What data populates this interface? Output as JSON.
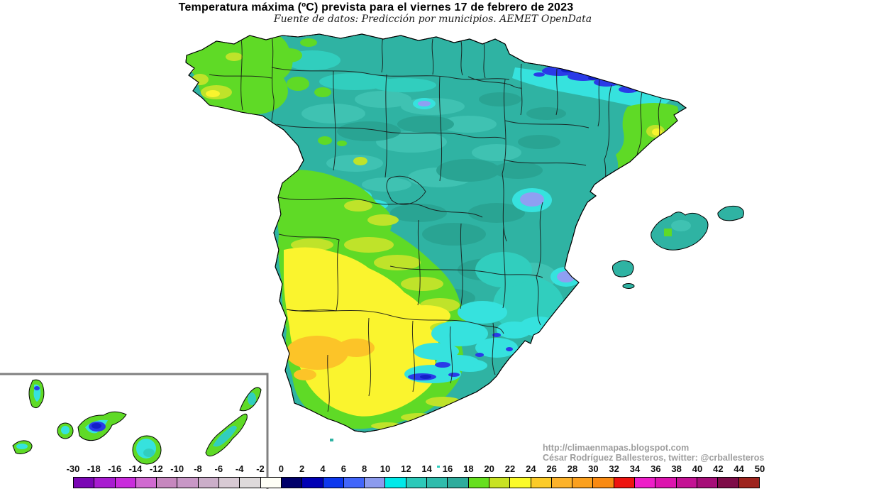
{
  "header": {
    "title": "Temperatura máxima (ºC) prevista para el viernes 17 de febrero de 2023",
    "subtitle": "Fuente de datos: Predicción por municipios. AEMET OpenData"
  },
  "attribution": {
    "url": "http://climaenmapas.blogspot.com",
    "author_line": "César Rodríguez Ballesteros, twitter: @crballesteros"
  },
  "legend": {
    "tick_labels": [
      "-30",
      "-18",
      "-16",
      "-14",
      "-12",
      "-10",
      "-8",
      "-6",
      "-4",
      "-2",
      "0",
      "2",
      "4",
      "6",
      "8",
      "10",
      "12",
      "14",
      "16",
      "18",
      "20",
      "22",
      "24",
      "26",
      "28",
      "30",
      "32",
      "34",
      "36",
      "38",
      "40",
      "42",
      "44",
      "50"
    ],
    "cell_colors": [
      "#7A06B4",
      "#A81CD0",
      "#C92CDC",
      "#D06AD0",
      "#C687BE",
      "#C897C6",
      "#CBAEC9",
      "#D8CAD4",
      "#DEDADB",
      "#FEFEF6",
      "#00006A",
      "#0000B4",
      "#0D38EE",
      "#4266FA",
      "#8C9BEE",
      "#00E9E9",
      "#2CC9B9",
      "#2FBCAC",
      "#2EAC9C",
      "#66DF1F",
      "#C8E223",
      "#FBFA28",
      "#FCCB28",
      "#FCB22A",
      "#FBA01E",
      "#F98A12",
      "#EE1410",
      "#EE1EC8",
      "#DC14AE",
      "#C41294",
      "#A60E78",
      "#7E0C48",
      "#9E241E"
    ]
  },
  "map_colors": {
    "sea": "#FFFFFF",
    "base_teal": "#2FB3A3",
    "teal_dark": "#29A493",
    "teal_light": "#3FC2B2",
    "turquoise": "#31CEBE",
    "cyan": "#36E2DE",
    "periwinkle": "#8F9FF2",
    "blue": "#2A3BE8",
    "navy": "#131FC9",
    "green": "#5FDA26",
    "yellow_green": "#BFE32A",
    "yellow": "#FAF42E",
    "orange": "#FCC428",
    "boundary": "#161616",
    "coastline": "#000000",
    "inset_border": "#808080"
  }
}
